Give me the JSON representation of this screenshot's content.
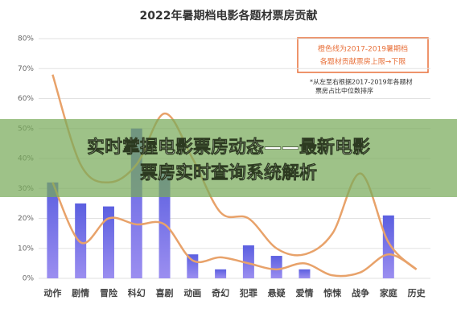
{
  "chart_data": {
    "type": "bar-line",
    "title": "2022年暑期档电影各题材票房贡献",
    "categories": [
      "动作",
      "剧情",
      "冒险",
      "科幻",
      "喜剧",
      "动画",
      "奇幻",
      "犯罪",
      "悬疑",
      "爱情",
      "惊悚",
      "战争",
      "家庭",
      "历史"
    ],
    "series": [
      {
        "type": "bar",
        "color": "#6a6de6",
        "values": [
          32,
          25,
          24,
          50,
          36,
          8,
          3,
          11,
          7.5,
          3,
          0,
          0,
          21,
          0
        ]
      },
      {
        "type": "line",
        "color": "#e8a26a",
        "values": [
          68,
          38,
          32,
          38,
          55,
          40,
          22,
          20,
          10,
          8,
          15,
          35,
          12,
          3
        ]
      },
      {
        "type": "line",
        "color": "#e8a26a",
        "values": [
          32,
          12,
          20,
          18,
          18,
          6,
          7,
          5,
          3,
          5,
          1,
          2,
          8,
          3
        ]
      }
    ],
    "ylim": [
      0,
      80
    ],
    "yticks": [
      {
        "value": 0,
        "label": "0%"
      },
      {
        "value": 10,
        "label": "10%"
      },
      {
        "value": 20,
        "label": "20%"
      },
      {
        "value": 30,
        "label": "30%"
      },
      {
        "value": 40,
        "label": "40%"
      },
      {
        "value": 50,
        "label": "50%"
      },
      {
        "value": 60,
        "label": "60%"
      },
      {
        "value": 70,
        "label": "70%"
      },
      {
        "value": 80,
        "label": "80%"
      }
    ],
    "grid": true,
    "legend_note": [
      "橙色线为2017-2019暑期档",
      "各题材贡献票房上限→下限"
    ],
    "footnote": [
      "*从左至右根据2017-2019年各题材",
      "票房占比中位数排序"
    ],
    "banner": [
      "实时掌握电影票房动态——最新电影",
      "票房实时查询系统解析"
    ]
  }
}
